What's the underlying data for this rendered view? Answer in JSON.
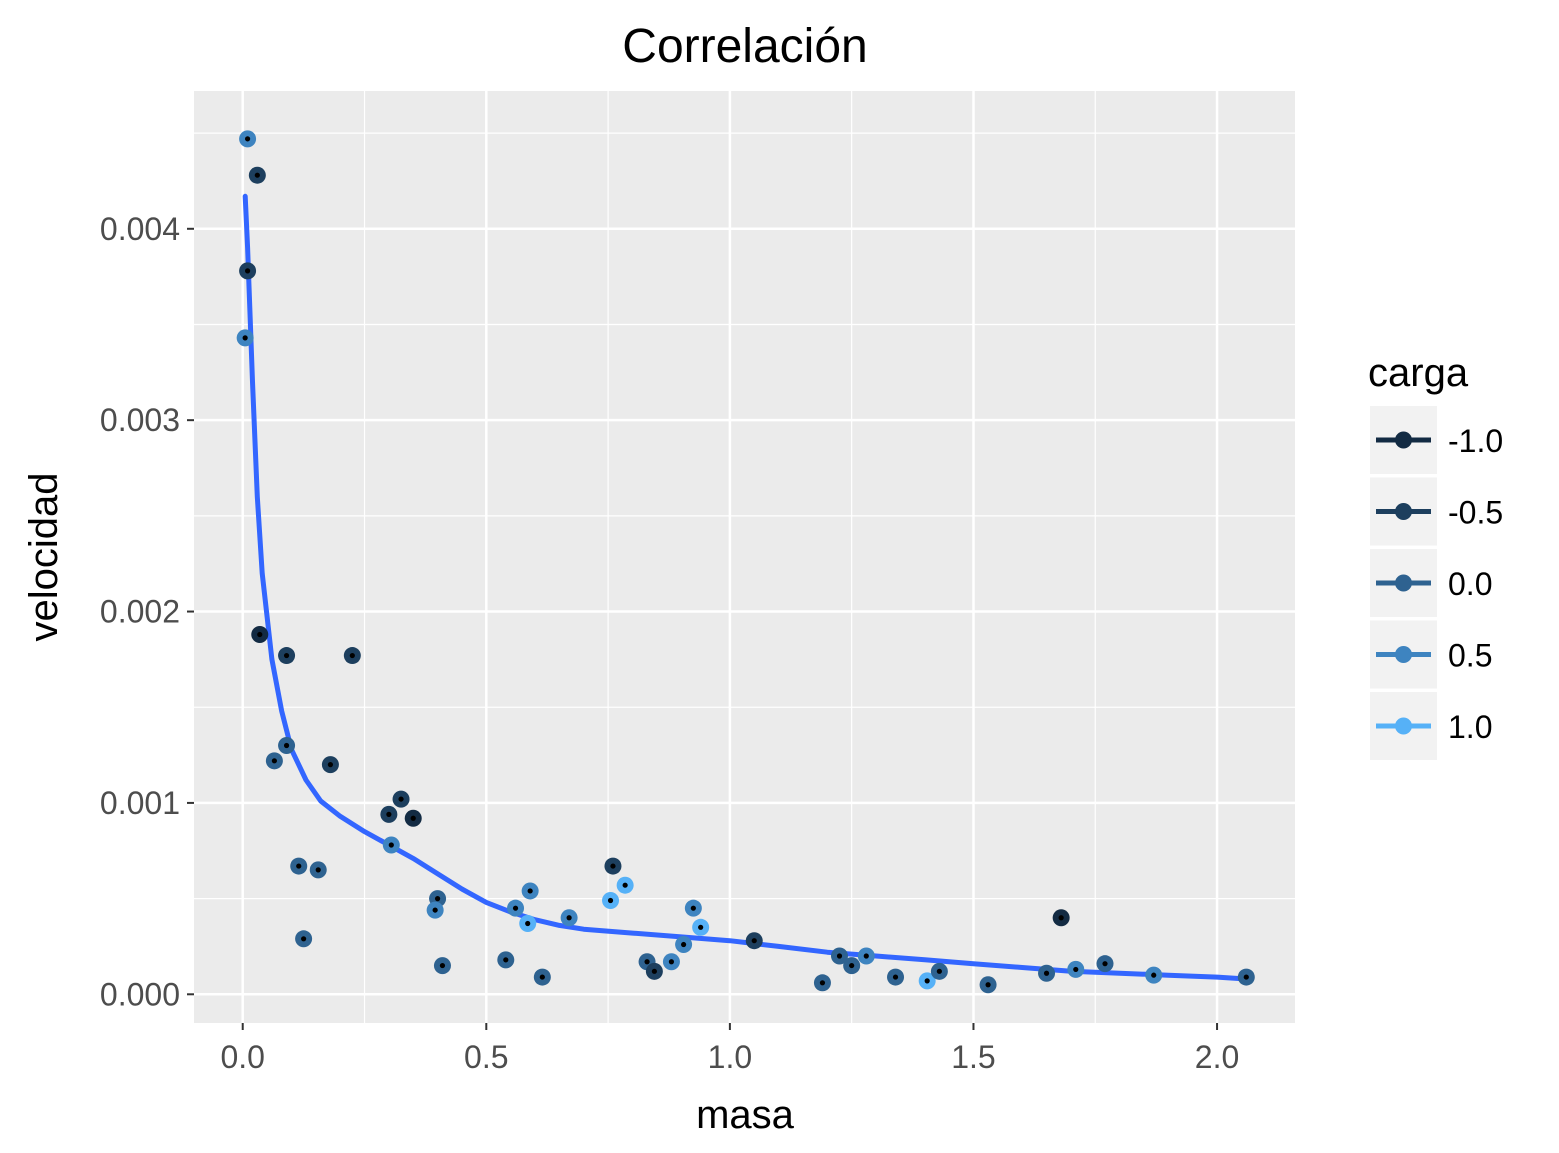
{
  "chart_data": {
    "type": "scatter",
    "title": "Correlación",
    "xlabel": "masa",
    "ylabel": "velocidad",
    "xlim": [
      -0.1,
      2.16
    ],
    "ylim": [
      -0.00015,
      0.00472
    ],
    "x_ticks": [
      0.0,
      0.5,
      1.0,
      1.5,
      2.0
    ],
    "x_tick_labels": [
      "0.0",
      "0.5",
      "1.0",
      "1.5",
      "2.0"
    ],
    "y_ticks": [
      0.0,
      0.001,
      0.002,
      0.003,
      0.004
    ],
    "y_tick_labels": [
      "0.000",
      "0.001",
      "0.002",
      "0.003",
      "0.004"
    ],
    "grid": true,
    "legend": {
      "title": "carga",
      "position": "right",
      "entries": [
        {
          "value": -1.0,
          "label": "-1.0",
          "color": "#132b43"
        },
        {
          "value": -0.5,
          "label": "-0.5",
          "color": "#1d3f5e"
        },
        {
          "value": 0.0,
          "label": "0.0",
          "color": "#2e6290"
        },
        {
          "value": 0.5,
          "label": "0.5",
          "color": "#3e84c0"
        },
        {
          "value": 1.0,
          "label": "1.0",
          "color": "#56b1f7"
        }
      ]
    },
    "colors": {
      "panel_background": "#ebebeb",
      "grid_major": "#ffffff",
      "smooth_line": "#3366ff",
      "point_center": "#000000",
      "legend_key_background": "#f2f2f2"
    },
    "points": [
      {
        "x": 0.01,
        "y": 0.00447,
        "carga": 0.5
      },
      {
        "x": 0.03,
        "y": 0.00428,
        "carga": -0.5
      },
      {
        "x": 0.01,
        "y": 0.00378,
        "carga": -0.5
      },
      {
        "x": 0.005,
        "y": 0.00343,
        "carga": 0.5
      },
      {
        "x": 0.035,
        "y": 0.00188,
        "carga": -1.0
      },
      {
        "x": 0.09,
        "y": 0.00177,
        "carga": -0.5
      },
      {
        "x": 0.225,
        "y": 0.00177,
        "carga": -0.5
      },
      {
        "x": 0.09,
        "y": 0.0013,
        "carga": 0.0
      },
      {
        "x": 0.065,
        "y": 0.00122,
        "carga": 0.0
      },
      {
        "x": 0.18,
        "y": 0.0012,
        "carga": -0.5
      },
      {
        "x": 0.325,
        "y": 0.00102,
        "carga": -0.5
      },
      {
        "x": 0.3,
        "y": 0.00094,
        "carga": -0.5
      },
      {
        "x": 0.35,
        "y": 0.00092,
        "carga": -1.0
      },
      {
        "x": 0.305,
        "y": 0.00078,
        "carga": 0.5
      },
      {
        "x": 0.115,
        "y": 0.00067,
        "carga": 0.0
      },
      {
        "x": 0.155,
        "y": 0.00065,
        "carga": 0.0
      },
      {
        "x": 0.125,
        "y": 0.00029,
        "carga": 0.0
      },
      {
        "x": 0.4,
        "y": 0.0005,
        "carga": 0.0
      },
      {
        "x": 0.395,
        "y": 0.00044,
        "carga": 0.5
      },
      {
        "x": 0.41,
        "y": 0.00015,
        "carga": 0.0
      },
      {
        "x": 0.54,
        "y": 0.00018,
        "carga": 0.0
      },
      {
        "x": 0.56,
        "y": 0.00045,
        "carga": 0.5
      },
      {
        "x": 0.59,
        "y": 0.00054,
        "carga": 0.5
      },
      {
        "x": 0.585,
        "y": 0.00037,
        "carga": 1.0
      },
      {
        "x": 0.615,
        "y": 9e-05,
        "carga": 0.0
      },
      {
        "x": 0.67,
        "y": 0.0004,
        "carga": 0.5
      },
      {
        "x": 0.76,
        "y": 0.00067,
        "carga": -0.5
      },
      {
        "x": 0.785,
        "y": 0.00057,
        "carga": 1.0
      },
      {
        "x": 0.755,
        "y": 0.00049,
        "carga": 1.0
      },
      {
        "x": 0.83,
        "y": 0.00017,
        "carga": 0.0
      },
      {
        "x": 0.845,
        "y": 0.00012,
        "carga": -0.5
      },
      {
        "x": 0.88,
        "y": 0.00017,
        "carga": 0.5
      },
      {
        "x": 0.905,
        "y": 0.00026,
        "carga": 0.5
      },
      {
        "x": 0.925,
        "y": 0.00045,
        "carga": 0.5
      },
      {
        "x": 0.94,
        "y": 0.00035,
        "carga": 1.0
      },
      {
        "x": 1.05,
        "y": 0.00028,
        "carga": -0.5
      },
      {
        "x": 1.19,
        "y": 6e-05,
        "carga": 0.0
      },
      {
        "x": 1.225,
        "y": 0.0002,
        "carga": 0.0
      },
      {
        "x": 1.25,
        "y": 0.00015,
        "carga": 0.0
      },
      {
        "x": 1.28,
        "y": 0.0002,
        "carga": 0.5
      },
      {
        "x": 1.34,
        "y": 9e-05,
        "carga": 0.0
      },
      {
        "x": 1.405,
        "y": 7e-05,
        "carga": 1.0
      },
      {
        "x": 1.43,
        "y": 0.00012,
        "carga": 0.0
      },
      {
        "x": 1.53,
        "y": 5e-05,
        "carga": 0.0
      },
      {
        "x": 1.65,
        "y": 0.00011,
        "carga": 0.0
      },
      {
        "x": 1.68,
        "y": 0.0004,
        "carga": -1.0
      },
      {
        "x": 1.71,
        "y": 0.00013,
        "carga": 0.5
      },
      {
        "x": 1.77,
        "y": 0.00016,
        "carga": 0.0
      },
      {
        "x": 1.87,
        "y": 0.0001,
        "carga": 0.5
      },
      {
        "x": 2.06,
        "y": 9e-05,
        "carga": 0.0
      }
    ],
    "smooth_line": [
      [
        0.005,
        0.00417
      ],
      [
        0.01,
        0.0039
      ],
      [
        0.02,
        0.0032
      ],
      [
        0.03,
        0.0026
      ],
      [
        0.04,
        0.0022
      ],
      [
        0.06,
        0.00175
      ],
      [
        0.08,
        0.00148
      ],
      [
        0.1,
        0.00128
      ],
      [
        0.13,
        0.00112
      ],
      [
        0.16,
        0.00101
      ],
      [
        0.2,
        0.00093
      ],
      [
        0.25,
        0.00085
      ],
      [
        0.3,
        0.00078
      ],
      [
        0.35,
        0.00071
      ],
      [
        0.4,
        0.00063
      ],
      [
        0.45,
        0.00055
      ],
      [
        0.5,
        0.00048
      ],
      [
        0.55,
        0.00043
      ],
      [
        0.6,
        0.00039
      ],
      [
        0.65,
        0.00036
      ],
      [
        0.7,
        0.00034
      ],
      [
        0.8,
        0.00032
      ],
      [
        0.9,
        0.0003
      ],
      [
        1.0,
        0.00028
      ],
      [
        1.1,
        0.00025
      ],
      [
        1.2,
        0.00022
      ],
      [
        1.3,
        0.0002
      ],
      [
        1.4,
        0.00018
      ],
      [
        1.5,
        0.00016
      ],
      [
        1.6,
        0.00014
      ],
      [
        1.7,
        0.00012
      ],
      [
        1.8,
        0.00011
      ],
      [
        1.9,
        0.0001
      ],
      [
        2.0,
        9e-05
      ],
      [
        2.06,
        8e-05
      ]
    ]
  }
}
